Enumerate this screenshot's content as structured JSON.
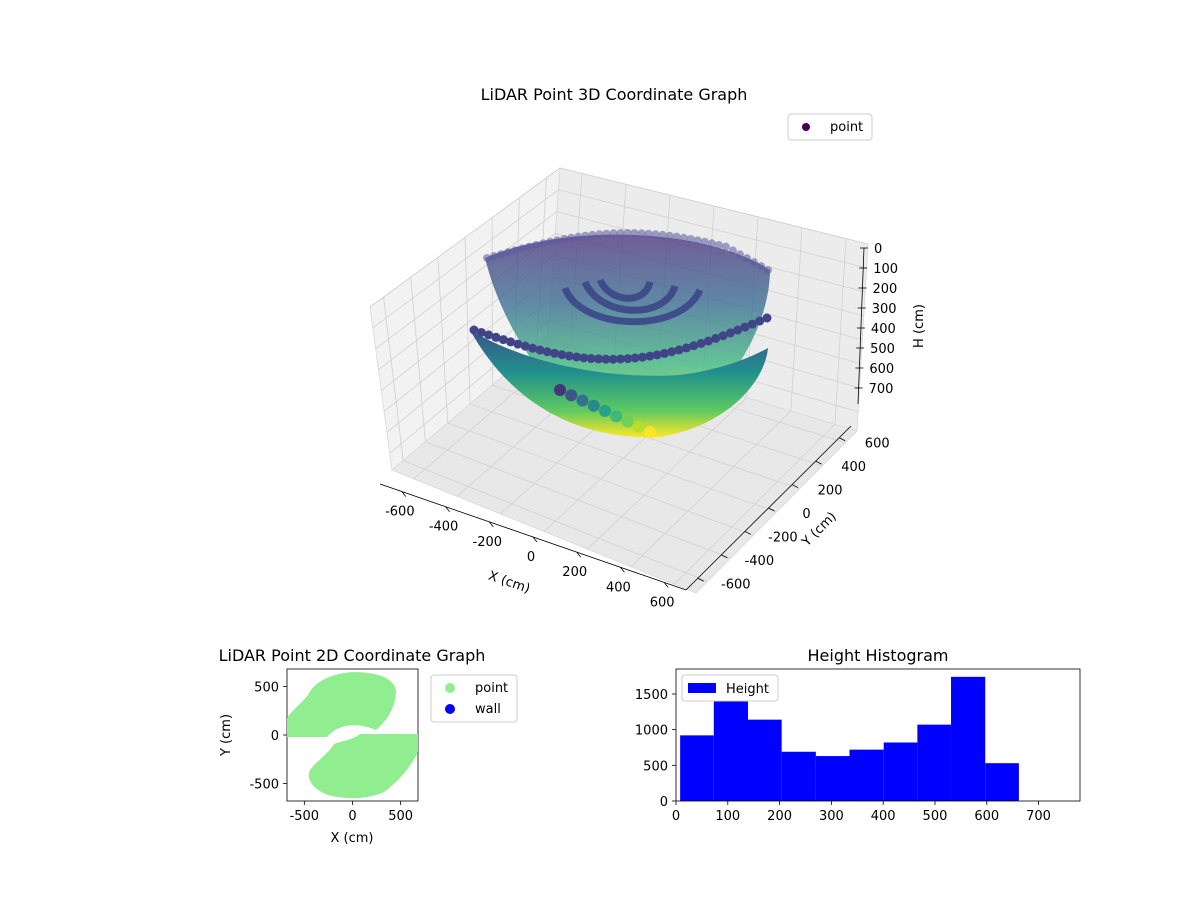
{
  "chart_data": [
    {
      "type": "scatter",
      "projection": "3d",
      "title": "LiDAR Point 3D Coordinate Graph",
      "xlabel": "X (cm)",
      "ylabel": "Y (cm)",
      "zlabel": "H (cm)",
      "xlim": [
        -700,
        700
      ],
      "ylim": [
        -700,
        700
      ],
      "zlim": [
        0,
        780
      ],
      "z_inverted": true,
      "x_ticks": [
        "-600",
        "-400",
        "-200",
        "0",
        "200",
        "400",
        "600"
      ],
      "y_ticks": [
        "-600",
        "-400",
        "-200",
        "0",
        "200",
        "400",
        "600"
      ],
      "z_ticks": [
        "0",
        "100",
        "200",
        "300",
        "400",
        "500",
        "600",
        "700"
      ],
      "colormap": "viridis",
      "grid": true,
      "legend": {
        "placement": "upper-right",
        "entries": [
          {
            "label": "point",
            "color": "#440154"
          }
        ]
      },
      "series": [
        {
          "name": "point",
          "shape": "two half-bowl surfaces of points with an inner ring cluster",
          "z_range": [
            0,
            760
          ]
        }
      ]
    },
    {
      "type": "scatter",
      "title": "LiDAR Point 2D Coordinate Graph",
      "xlabel": "X (cm)",
      "ylabel": "Y (cm)",
      "xlim": [
        -680,
        680
      ],
      "ylim": [
        -680,
        680
      ],
      "x_ticks": [
        "-500",
        "0",
        "500"
      ],
      "y_ticks": [
        "-500",
        "0",
        "500"
      ],
      "legend": {
        "placement": "outside-right",
        "entries": [
          {
            "label": "point",
            "color": "#90ee90"
          },
          {
            "label": "wall",
            "color": "#0000ff"
          }
        ]
      },
      "series": [
        {
          "name": "point",
          "color": "#90ee90",
          "shape": "two filled half-disks forming an S-shaped region, radius ~620"
        },
        {
          "name": "wall",
          "color": "#0000ff",
          "values": []
        }
      ]
    },
    {
      "type": "bar",
      "subtype": "histogram",
      "title": "Height Histogram",
      "xlim": [
        0,
        780
      ],
      "ylim": [
        0,
        1850
      ],
      "x_ticks": [
        "0",
        "100",
        "200",
        "300",
        "400",
        "500",
        "600",
        "700"
      ],
      "y_ticks": [
        "0",
        "500",
        "1000",
        "1500"
      ],
      "color": "#0000ff",
      "legend": {
        "placement": "upper-left",
        "entries": [
          {
            "label": "Height",
            "color": "#0000ff"
          }
        ]
      },
      "bins": [
        {
          "x0": 8,
          "x1": 73,
          "value": 920
        },
        {
          "x0": 73,
          "x1": 139,
          "value": 1400
        },
        {
          "x0": 139,
          "x1": 204,
          "value": 1140
        },
        {
          "x0": 204,
          "x1": 270,
          "value": 690
        },
        {
          "x0": 270,
          "x1": 335,
          "value": 630
        },
        {
          "x0": 335,
          "x1": 401,
          "value": 720
        },
        {
          "x0": 401,
          "x1": 466,
          "value": 820
        },
        {
          "x0": 466,
          "x1": 531,
          "value": 1070
        },
        {
          "x0": 531,
          "x1": 597,
          "value": 1740
        },
        {
          "x0": 597,
          "x1": 662,
          "value": 530
        }
      ]
    }
  ]
}
